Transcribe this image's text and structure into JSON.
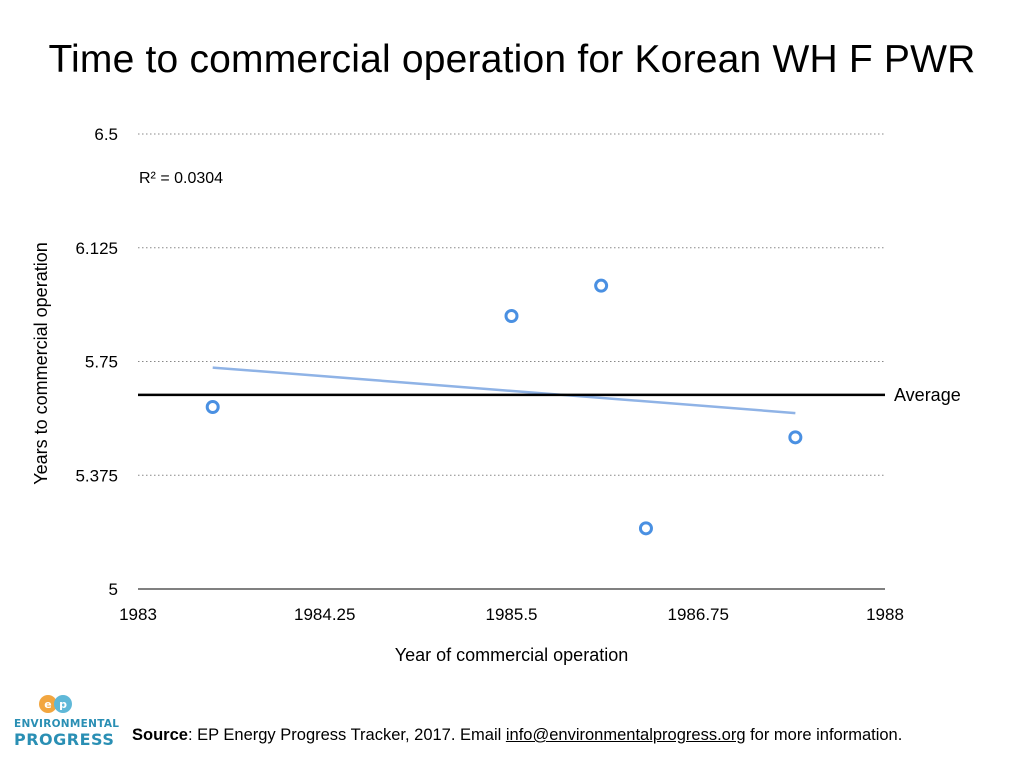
{
  "page": {
    "source_label": "Source",
    "source_text_before": ": EP Energy Progress Tracker, 2017. Email ",
    "source_email": "info@environmentalprogress.org",
    "source_text_after": " for more information.",
    "logo": {
      "line1": "ENVIRONMENTAL",
      "line2": "PROGRESS",
      "mark": "EP"
    }
  },
  "chart_data": {
    "type": "scatter",
    "title": "Time to commercial operation for Korean WH F PWR",
    "xlabel": "Year of commercial operation",
    "ylabel": "Years to commercial operation",
    "xlim": [
      1983,
      1988
    ],
    "ylim": [
      5,
      6.5
    ],
    "x_ticks": [
      1983,
      1984.25,
      1985.5,
      1986.75,
      1988
    ],
    "y_ticks": [
      5,
      5.375,
      5.75,
      6.125,
      6.5
    ],
    "grid": "horizontal dotted",
    "series": [
      {
        "points": [
          {
            "x": 1983.5,
            "y": 5.6
          },
          {
            "x": 1985.5,
            "y": 5.9
          },
          {
            "x": 1986.1,
            "y": 6.0
          },
          {
            "x": 1986.4,
            "y": 5.2
          },
          {
            "x": 1987.4,
            "y": 5.5
          }
        ],
        "color": "#4a90e2"
      }
    ],
    "trendline": {
      "x": [
        1983.5,
        1987.4
      ],
      "y": [
        5.73,
        5.58
      ],
      "color": "#8fb3e6",
      "r2_label": "R² = 0.0304"
    },
    "average": {
      "y": 5.64,
      "label": "Average",
      "color": "#000000"
    }
  }
}
